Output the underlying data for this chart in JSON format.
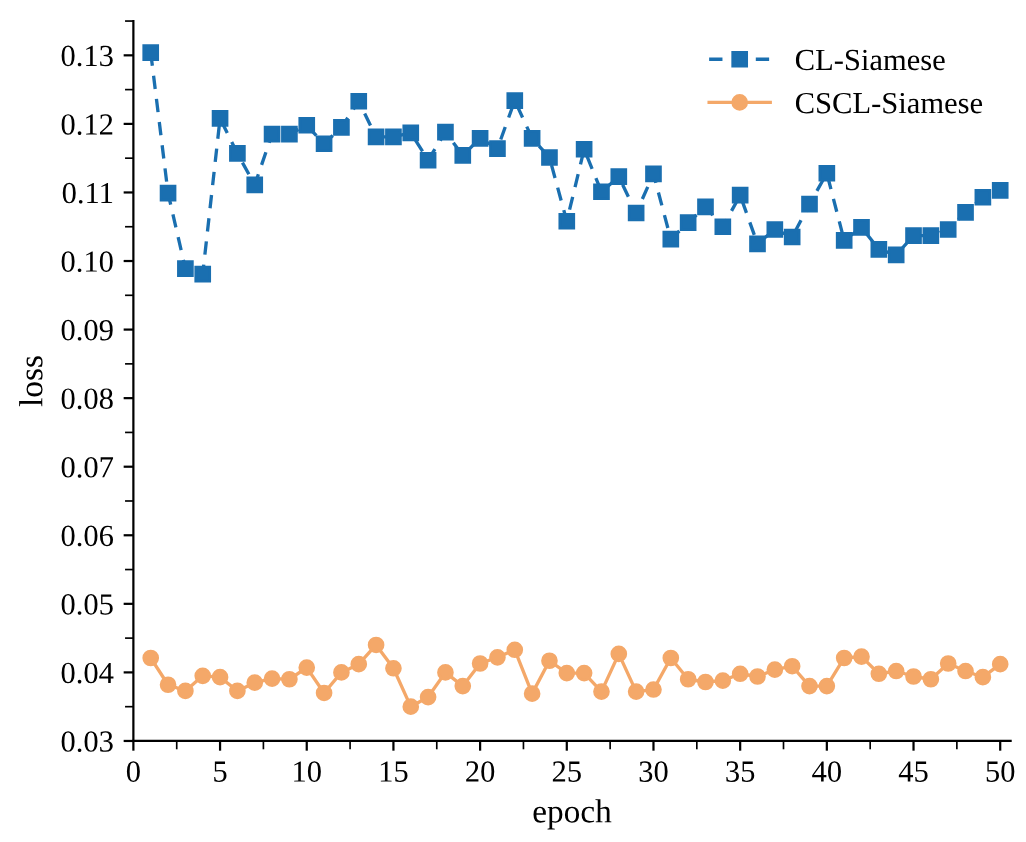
{
  "chart_data": {
    "type": "line",
    "xlabel": "epoch",
    "ylabel": "loss",
    "x": [
      1,
      2,
      3,
      4,
      5,
      6,
      7,
      8,
      9,
      10,
      11,
      12,
      13,
      14,
      15,
      16,
      17,
      18,
      19,
      20,
      21,
      22,
      23,
      24,
      25,
      26,
      27,
      28,
      29,
      30,
      31,
      32,
      33,
      34,
      35,
      36,
      37,
      38,
      39,
      40,
      41,
      42,
      43,
      44,
      45,
      46,
      47,
      48,
      49,
      50
    ],
    "series": [
      {
        "name": "CL-Siamese",
        "color": "#1a6fb0",
        "marker": "square",
        "line_style": "dashed",
        "values": [
          0.1304,
          0.1099,
          0.0989,
          0.0981,
          0.1208,
          0.1157,
          0.1111,
          0.1185,
          0.1185,
          0.1198,
          0.1171,
          0.1195,
          0.1233,
          0.1181,
          0.1181,
          0.1187,
          0.1147,
          0.1188,
          0.1154,
          0.1179,
          0.1164,
          0.1234,
          0.1179,
          0.1151,
          0.1058,
          0.1163,
          0.1101,
          0.1123,
          0.107,
          0.1127,
          0.1032,
          0.1056,
          0.1079,
          0.105,
          0.1096,
          0.1025,
          0.1046,
          0.1035,
          0.1083,
          0.1128,
          0.103,
          0.1049,
          0.1017,
          0.1009,
          0.1037,
          0.1037,
          0.1046,
          0.1071,
          0.1093,
          0.1103
        ]
      },
      {
        "name": "CSCL-Siamese",
        "color": "#f4a869",
        "marker": "circle",
        "line_style": "solid",
        "values": [
          0.0421,
          0.0382,
          0.0373,
          0.0395,
          0.0393,
          0.0373,
          0.0385,
          0.0391,
          0.039,
          0.0407,
          0.037,
          0.04,
          0.0412,
          0.044,
          0.0406,
          0.035,
          0.0364,
          0.04,
          0.038,
          0.0413,
          0.0422,
          0.0433,
          0.0369,
          0.0417,
          0.0399,
          0.0399,
          0.0372,
          0.0427,
          0.0372,
          0.0375,
          0.0421,
          0.039,
          0.0386,
          0.0388,
          0.0398,
          0.0394,
          0.0404,
          0.0409,
          0.038,
          0.038,
          0.0421,
          0.0423,
          0.0398,
          0.0402,
          0.0394,
          0.039,
          0.0413,
          0.0402,
          0.0393,
          0.0412
        ]
      }
    ],
    "xlim": [
      0,
      50.6
    ],
    "xticks": [
      0,
      5,
      10,
      15,
      20,
      25,
      30,
      35,
      40,
      45,
      50
    ],
    "ylim": [
      0.03,
      0.135
    ],
    "yticks": [
      0.03,
      0.04,
      0.05,
      0.06,
      0.07,
      0.08,
      0.09,
      {
        "value": 0.1,
        "label": "0.10"
      },
      0.11,
      0.12,
      0.13
    ],
    "legend": "top right",
    "grid": false
  }
}
